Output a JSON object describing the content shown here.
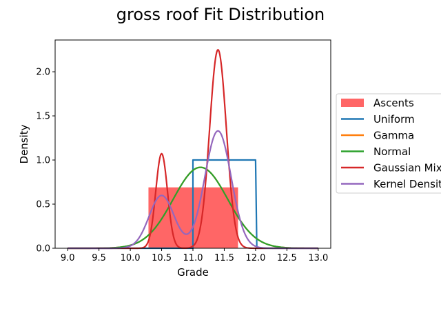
{
  "chart_data": {
    "type": "line",
    "title": "gross roof Fit Distribution",
    "xlabel": "Grade",
    "ylabel": "Density",
    "xlim": [
      8.8,
      13.2
    ],
    "ylim": [
      0,
      2.36
    ],
    "xticks": [
      "9.0",
      "9.5",
      "10.0",
      "10.5",
      "11.0",
      "11.5",
      "12.0",
      "12.5",
      "13.0"
    ],
    "xtick_values": [
      9.0,
      9.5,
      10.0,
      10.5,
      11.0,
      11.5,
      12.0,
      12.5,
      13.0
    ],
    "yticks": [
      "0.0",
      "0.5",
      "1.0",
      "1.5",
      "2.0"
    ],
    "ytick_values": [
      0.0,
      0.5,
      1.0,
      1.5,
      2.0
    ],
    "grid": false,
    "legend_position": "right",
    "histogram": {
      "name": "Ascents",
      "color": "#ff6666",
      "bins": [
        {
          "x0": 10.29,
          "x1": 11.72,
          "value": 0.69
        }
      ]
    },
    "series": [
      {
        "name": "Uniform",
        "color": "#1f77b4",
        "points": [
          [
            9.0,
            0
          ],
          [
            10.9,
            0
          ],
          [
            11.0,
            0
          ],
          [
            11.0,
            1.0
          ],
          [
            12.0,
            1.0
          ],
          [
            12.02,
            0
          ],
          [
            13.0,
            0
          ]
        ]
      },
      {
        "name": "Gamma",
        "color": "#ff7f0e",
        "dist": {
          "kind": "normal",
          "mean": 11.12,
          "std": 0.435
        }
      },
      {
        "name": "Normal",
        "color": "#2ca02c",
        "dist": {
          "kind": "normal",
          "mean": 11.12,
          "std": 0.435
        }
      },
      {
        "name": "Gaussian Mixture",
        "color": "#d62728",
        "dist": {
          "kind": "mixture",
          "components": [
            {
              "weight": 0.25,
              "mean": 10.5,
              "std": 0.093
            },
            {
              "weight": 0.75,
              "mean": 11.4,
              "std": 0.133
            }
          ]
        }
      },
      {
        "name": "Kernel Density",
        "color": "#9467bd",
        "dist": {
          "kind": "mixture",
          "components": [
            {
              "weight": 0.3,
              "mean": 10.5,
              "std": 0.2
            },
            {
              "weight": 0.7,
              "mean": 11.4,
              "std": 0.21
            }
          ]
        }
      }
    ]
  }
}
